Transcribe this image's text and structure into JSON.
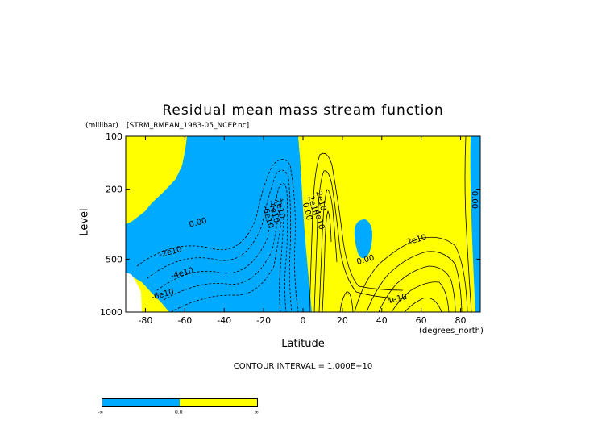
{
  "title": "Residual mean mass stream function",
  "subtitle": "[STRM_RMEAN_1983-05_NCEP.nc]",
  "y_unit": "(millibar)",
  "x_unit": "(degrees_north)",
  "contour_interval_text": "CONTOUR INTERVAL = 1.000E+10",
  "colors": {
    "negative": "#00aaff",
    "positive": "#ffff00",
    "line": "#000000"
  },
  "colorbar": {
    "labels": [
      "-∞",
      "0.0",
      "∞"
    ]
  },
  "chart_data": {
    "type": "contour",
    "title": "Residual mean mass stream function",
    "xlabel": "Latitude",
    "ylabel": "Level",
    "x_unit": "degrees_north",
    "y_unit": "millibar",
    "xlim": [
      -90,
      90
    ],
    "ylim": [
      1000,
      100
    ],
    "y_scale": "log",
    "x_ticks": [
      -80,
      -60,
      -40,
      -20,
      0,
      20,
      40,
      60,
      80
    ],
    "y_ticks": [
      100,
      200,
      500,
      1000
    ],
    "contour_interval": 10000000000.0,
    "contour_labels": [
      {
        "text": "0.00",
        "x": -53,
        "y": 320
      },
      {
        "text": "-2e10",
        "x": -67,
        "y": 470
      },
      {
        "text": "-4e10",
        "x": -61,
        "y": 620
      },
      {
        "text": "-6e10",
        "x": -71,
        "y": 820
      },
      {
        "text": "-2e10",
        "x": -13,
        "y": 255
      },
      {
        "text": "-4e10",
        "x": -16,
        "y": 270
      },
      {
        "text": "-6e10",
        "x": -19,
        "y": 290
      },
      {
        "text": "0.00",
        "x": 1,
        "y": 270
      },
      {
        "text": "2e10",
        "x": 4,
        "y": 250
      },
      {
        "text": "2e10",
        "x": 8,
        "y": 235
      },
      {
        "text": "4e10",
        "x": 7,
        "y": 300
      },
      {
        "text": "0.00",
        "x": 32,
        "y": 520
      },
      {
        "text": "2e10",
        "x": 58,
        "y": 400
      },
      {
        "text": "4e10",
        "x": 48,
        "y": 870
      },
      {
        "text": "0.00",
        "x": 86,
        "y": 230
      }
    ]
  }
}
